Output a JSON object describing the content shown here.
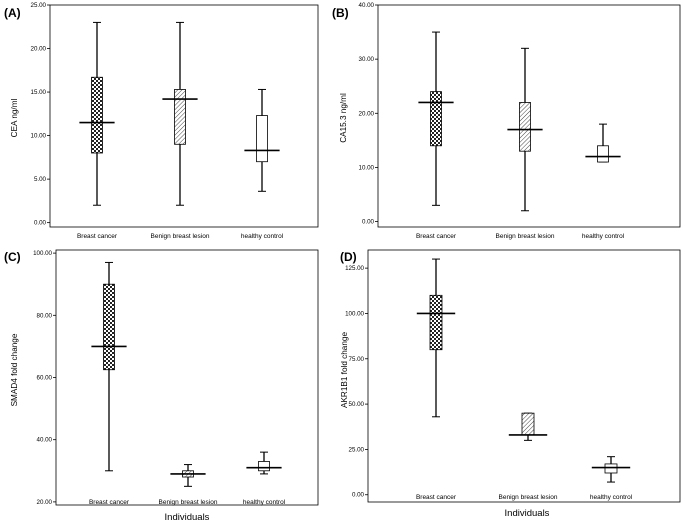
{
  "chart_data": [
    {
      "type": "boxplot",
      "panel_label": "(A)",
      "ylabel": "CEA ng/ml",
      "xlabel": "",
      "ylim": [
        -0.5,
        25
      ],
      "yticks": [
        0,
        5,
        10,
        15,
        20,
        25
      ],
      "ytick_labels": [
        "0.00",
        "5.00",
        "10.00",
        "15.00",
        "20.00",
        "25.00"
      ],
      "categories": [
        "Breast cancer",
        "Benign breast lesion",
        "healthy control"
      ],
      "boxes": [
        {
          "min": 2.0,
          "q1": 8.0,
          "median": 11.5,
          "q3": 16.7,
          "max": 23.0,
          "pattern": "checker"
        },
        {
          "min": 2.0,
          "q1": 9.0,
          "median": 14.2,
          "q3": 15.3,
          "max": 23.0,
          "pattern": "hatch"
        },
        {
          "min": 3.6,
          "q1": 7.0,
          "median": 8.3,
          "q3": 12.3,
          "max": 15.3,
          "pattern": "plain"
        }
      ]
    },
    {
      "type": "boxplot",
      "panel_label": "(B)",
      "ylabel": "CA15.3 ng/ml",
      "xlabel": "",
      "ylim": [
        -1,
        40
      ],
      "yticks": [
        0,
        10,
        20,
        30,
        40
      ],
      "ytick_labels": [
        "0.00",
        "10.00",
        "20.00",
        "30.00",
        "40.00"
      ],
      "categories": [
        "Breast cancer",
        "Benign breast lesion",
        "healthy control"
      ],
      "boxes": [
        {
          "min": 3.0,
          "q1": 14.0,
          "median": 22.0,
          "q3": 24.0,
          "max": 35.0,
          "pattern": "checker"
        },
        {
          "min": 2.0,
          "q1": 13.0,
          "median": 17.0,
          "q3": 22.0,
          "max": 32.0,
          "pattern": "hatch"
        },
        {
          "min": 11.0,
          "q1": 11.0,
          "median": 12.0,
          "q3": 14.0,
          "max": 18.0,
          "pattern": "plain"
        }
      ]
    },
    {
      "type": "boxplot",
      "panel_label": "(C)",
      "ylabel": "SMAD4 fold change",
      "xlabel": "Individuals",
      "ylim": [
        19,
        101
      ],
      "yticks": [
        20,
        40,
        60,
        80,
        100
      ],
      "ytick_labels": [
        "20.00",
        "40.00",
        "60.00",
        "80.00",
        "100.00"
      ],
      "categories": [
        "Breast cancer",
        "Benign breast lesion",
        "healthy control"
      ],
      "boxes": [
        {
          "min": 30.0,
          "q1": 62.5,
          "median": 70.0,
          "q3": 90.0,
          "max": 97.0,
          "pattern": "checker"
        },
        {
          "min": 25.0,
          "q1": 28.0,
          "median": 29.0,
          "q3": 30.0,
          "max": 32.0,
          "pattern": "hatch"
        },
        {
          "min": 29.0,
          "q1": 30.0,
          "median": 31.0,
          "q3": 33.0,
          "max": 36.0,
          "pattern": "plain"
        }
      ]
    },
    {
      "type": "boxplot",
      "panel_label": "(D)",
      "ylabel": "AKR1B1 fold change",
      "xlabel": "Individuals",
      "ylim": [
        -4,
        135
      ],
      "yticks": [
        0,
        25,
        50,
        75,
        100,
        125
      ],
      "ytick_labels": [
        "0.00",
        "25.00",
        "50.00",
        "75.00",
        "100.00",
        "125.00"
      ],
      "categories": [
        "Breast cancer",
        "Benign breast lesion",
        "healthy control"
      ],
      "boxes": [
        {
          "min": 43.0,
          "q1": 80.0,
          "median": 100.0,
          "q3": 110.0,
          "max": 130.0,
          "pattern": "checker"
        },
        {
          "min": 30.0,
          "q1": 33.0,
          "median": 33.0,
          "q3": 45.0,
          "max": 45.0,
          "pattern": "hatch"
        },
        {
          "min": 7.0,
          "q1": 12.0,
          "median": 15.0,
          "q3": 17.0,
          "max": 21.0,
          "pattern": "plain"
        }
      ]
    }
  ]
}
